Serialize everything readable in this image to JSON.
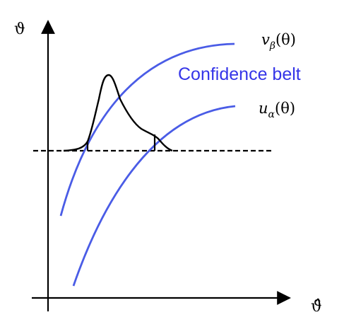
{
  "diagram": {
    "y_axis_label": "ϑ",
    "x_axis_label": "ϑ̂",
    "upper_curve_label": "v_β(θ)",
    "lower_curve_label": "u_α(θ)",
    "upper_curve_label_parts": {
      "base": "v",
      "sub": "β",
      "arg": "(θ)"
    },
    "lower_curve_label_parts": {
      "base": "u",
      "sub": "α",
      "arg": "(θ)"
    },
    "belt_title": "Confidence belt",
    "colors": {
      "belt_curves": "#4a5ce6",
      "belt_title": "#3535e8",
      "axes": "#000000",
      "distribution": "#000000",
      "dashed_line": "#000000"
    }
  }
}
